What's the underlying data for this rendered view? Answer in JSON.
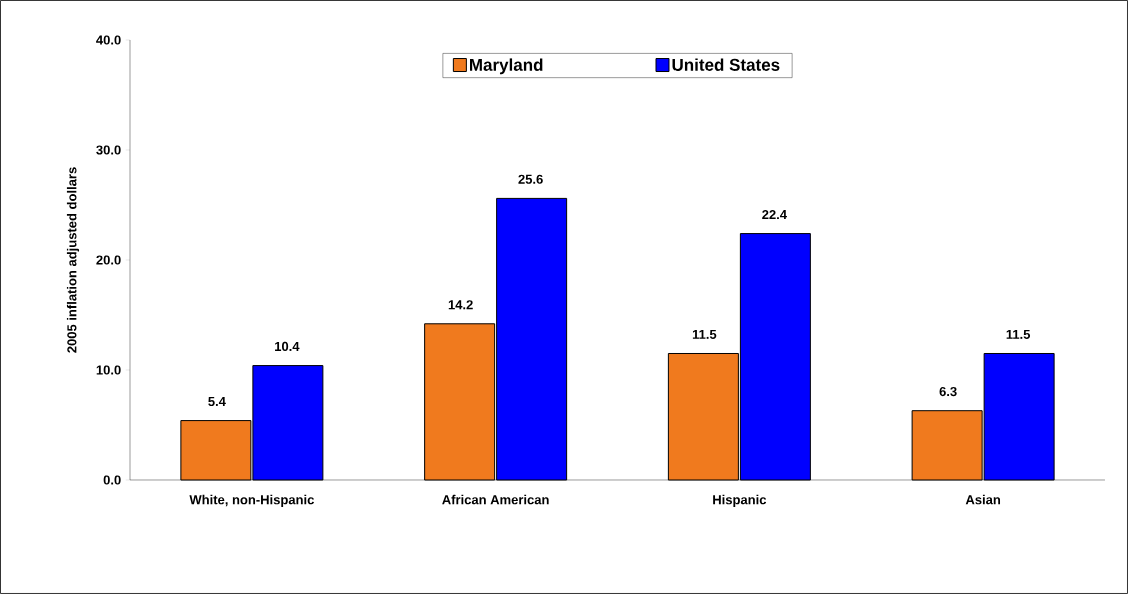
{
  "chart_data": {
    "type": "bar",
    "ylabel": "2005 inflation adjusted dollars",
    "categories": [
      "White, non-Hispanic",
      "African American",
      "Hispanic",
      "Asian"
    ],
    "series": [
      {
        "name": "Maryland",
        "color": "#f07a1e",
        "values": [
          5.4,
          14.2,
          11.5,
          6.3
        ]
      },
      {
        "name": "United States",
        "color": "#0000ff",
        "values": [
          10.4,
          25.6,
          22.4,
          11.5
        ]
      }
    ],
    "ylim": [
      0,
      40
    ],
    "yticks": [
      {
        "value": 0,
        "label": "0.0"
      },
      {
        "value": 10,
        "label": "10.0"
      },
      {
        "value": 20,
        "label": "20.0"
      },
      {
        "value": 30,
        "label": "30.0"
      },
      {
        "value": 40,
        "label": "40.0"
      }
    ],
    "data_labels": true,
    "legend": "top",
    "grid": false
  }
}
